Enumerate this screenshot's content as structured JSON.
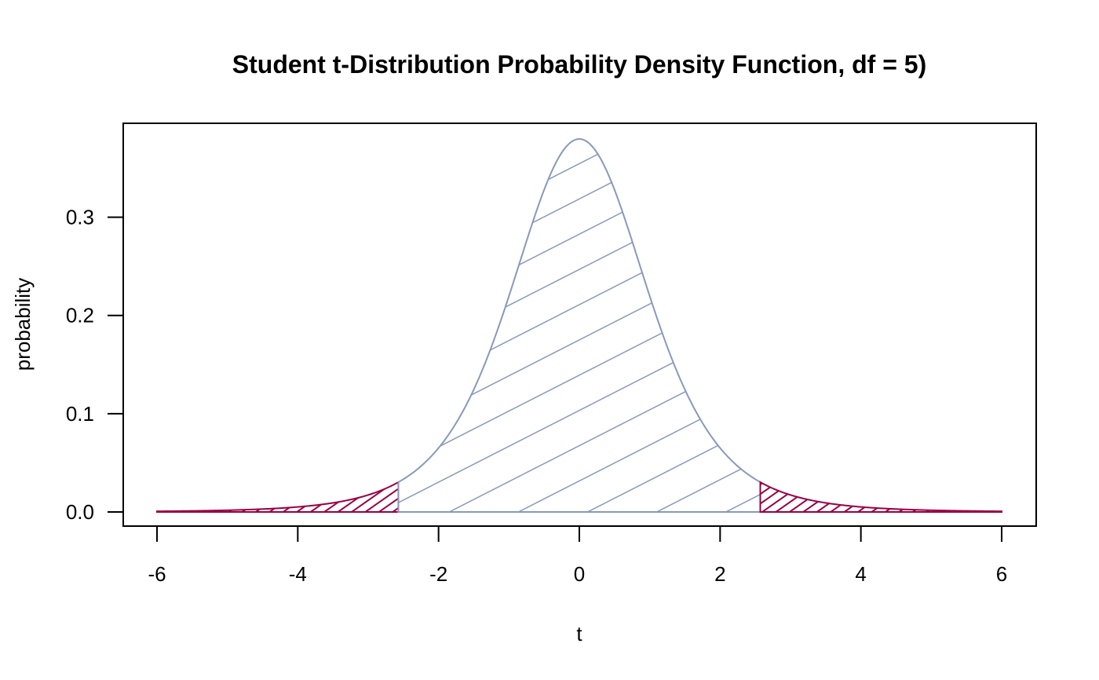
{
  "chart_data": {
    "type": "area",
    "title": "Student t-Distribution Probability Density Function, df = 5)",
    "xlabel": "t",
    "ylabel": "probability",
    "df": 5,
    "xlim": [
      -6,
      6
    ],
    "ylim": [
      0,
      0.3796
    ],
    "x_ticks": [
      -6,
      -4,
      -2,
      0,
      2,
      4,
      6
    ],
    "x_tick_labels": [
      "-6",
      "-4",
      "-2",
      "0",
      "2",
      "4",
      "6"
    ],
    "y_ticks": [
      0.0,
      0.1,
      0.2,
      0.3
    ],
    "y_tick_labels": [
      "0.0",
      "0.1",
      "0.2",
      "0.3"
    ],
    "grid": false,
    "critical_value": 2.571,
    "regions": [
      {
        "name": "left-tail",
        "from": -6,
        "to": -2.571,
        "color": "#990044",
        "fill": "dense-hatch"
      },
      {
        "name": "center",
        "from": -2.571,
        "to": 2.571,
        "color": "#8899bb",
        "fill": "sparse-hatch"
      },
      {
        "name": "right-tail",
        "from": 2.571,
        "to": 6,
        "color": "#990044",
        "fill": "dense-hatch"
      }
    ],
    "series": [
      {
        "x": [
          -6,
          -5,
          -4,
          -3,
          -2.571,
          -2,
          -1.5,
          -1,
          -0.5,
          0,
          0.5,
          1,
          1.5,
          2,
          2.571,
          3,
          4,
          5,
          6
        ],
        "y": [
          0.0018,
          0.0018,
          0.0051,
          0.0173,
          0.0302,
          0.0651,
          0.1245,
          0.2197,
          0.3279,
          0.3796,
          0.3279,
          0.2197,
          0.1245,
          0.0651,
          0.0302,
          0.0173,
          0.0051,
          0.0018,
          0.0018
        ]
      }
    ]
  }
}
